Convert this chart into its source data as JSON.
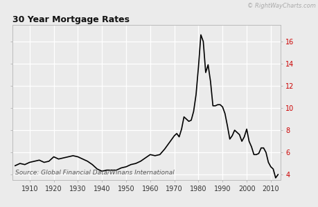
{
  "title": "30 Year Mortgage Rates",
  "watermark": "© RightWayCharts.com",
  "source_text": "Source: Global Financial Data/Winans International",
  "background_color": "#ebebeb",
  "plot_bg_color": "#ebebeb",
  "line_color": "#000000",
  "line_width": 1.2,
  "grid_color": "#ffffff",
  "tick_color_right": "#cc0000",
  "xlim": [
    1903,
    2014
  ],
  "ylim": [
    3.5,
    17.5
  ],
  "yticks": [
    4,
    6,
    8,
    10,
    12,
    14,
    16
  ],
  "xticks": [
    1910,
    1920,
    1930,
    1940,
    1950,
    1960,
    1970,
    1980,
    1990,
    2000,
    2010
  ],
  "data": [
    [
      1904,
      4.8
    ],
    [
      1906,
      5.0
    ],
    [
      1908,
      4.9
    ],
    [
      1910,
      5.1
    ],
    [
      1912,
      5.2
    ],
    [
      1914,
      5.3
    ],
    [
      1916,
      5.1
    ],
    [
      1918,
      5.2
    ],
    [
      1920,
      5.6
    ],
    [
      1922,
      5.4
    ],
    [
      1924,
      5.5
    ],
    [
      1926,
      5.6
    ],
    [
      1928,
      5.7
    ],
    [
      1930,
      5.6
    ],
    [
      1932,
      5.4
    ],
    [
      1934,
      5.2
    ],
    [
      1936,
      4.9
    ],
    [
      1938,
      4.5
    ],
    [
      1940,
      4.3
    ],
    [
      1942,
      4.4
    ],
    [
      1944,
      4.4
    ],
    [
      1946,
      4.4
    ],
    [
      1948,
      4.6
    ],
    [
      1950,
      4.7
    ],
    [
      1952,
      4.9
    ],
    [
      1954,
      5.0
    ],
    [
      1956,
      5.2
    ],
    [
      1958,
      5.5
    ],
    [
      1960,
      5.8
    ],
    [
      1962,
      5.7
    ],
    [
      1964,
      5.8
    ],
    [
      1966,
      6.3
    ],
    [
      1968,
      6.9
    ],
    [
      1970,
      7.5
    ],
    [
      1971,
      7.7
    ],
    [
      1972,
      7.4
    ],
    [
      1973,
      8.1
    ],
    [
      1974,
      9.2
    ],
    [
      1975,
      9.0
    ],
    [
      1976,
      8.8
    ],
    [
      1977,
      8.9
    ],
    [
      1978,
      9.7
    ],
    [
      1979,
      11.2
    ],
    [
      1980,
      13.7
    ],
    [
      1981,
      16.6
    ],
    [
      1982,
      16.0
    ],
    [
      1983,
      13.2
    ],
    [
      1984,
      13.9
    ],
    [
      1985,
      12.4
    ],
    [
      1986,
      10.2
    ],
    [
      1987,
      10.2
    ],
    [
      1988,
      10.3
    ],
    [
      1989,
      10.3
    ],
    [
      1990,
      10.1
    ],
    [
      1991,
      9.5
    ],
    [
      1992,
      8.4
    ],
    [
      1993,
      7.2
    ],
    [
      1994,
      7.5
    ],
    [
      1995,
      8.0
    ],
    [
      1996,
      7.8
    ],
    [
      1997,
      7.6
    ],
    [
      1998,
      7.0
    ],
    [
      1999,
      7.4
    ],
    [
      2000,
      8.1
    ],
    [
      2001,
      7.0
    ],
    [
      2002,
      6.5
    ],
    [
      2003,
      5.8
    ],
    [
      2004,
      5.8
    ],
    [
      2005,
      5.9
    ],
    [
      2006,
      6.4
    ],
    [
      2007,
      6.4
    ],
    [
      2008,
      6.0
    ],
    [
      2009,
      5.1
    ],
    [
      2010,
      4.7
    ],
    [
      2011,
      4.5
    ],
    [
      2012,
      3.7
    ],
    [
      2013,
      4.0
    ]
  ]
}
